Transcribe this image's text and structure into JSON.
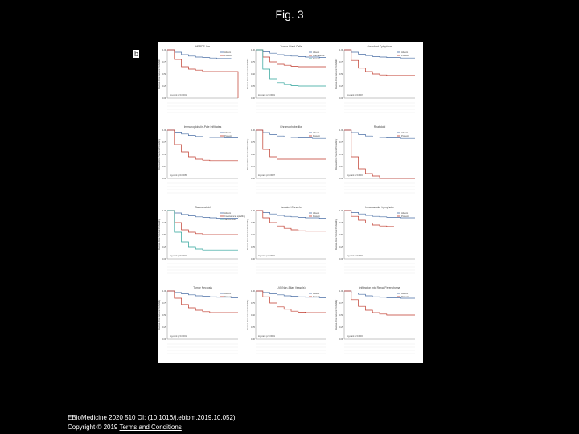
{
  "title": "Fig. 3",
  "panel_letter": "b",
  "footer": {
    "citation": "EBioMedicine 2020 510 OI: (10.1016/j.ebiom.2019.10.052)",
    "copyright": "Copyright © 2019",
    "terms_link": "Terms and Conditions"
  },
  "colors": {
    "absent": "#4a6fa5",
    "present": "#c0392b",
    "third": "#2aa198",
    "grid": "#bbbbbb",
    "text": "#444444"
  },
  "panels": [
    {
      "title": "HERDS-like",
      "legend": [
        "Absent",
        "Present"
      ],
      "pval": "log-rank p<0.0001",
      "series": [
        [
          1,
          0.95,
          0.9,
          0.87,
          0.85,
          0.84,
          0.83,
          0.82,
          0.82,
          0.81,
          0.81
        ],
        [
          1,
          0.8,
          0.65,
          0.6,
          0.58,
          0.55,
          0.55,
          0.55,
          0.55,
          0.55,
          0.0
        ]
      ]
    },
    {
      "title": "Tumor Giant Cells",
      "legend": [
        "Absent",
        "Intermediate",
        "Present"
      ],
      "pval": "log-rank p<0.0001",
      "series": [
        [
          1,
          0.96,
          0.93,
          0.9,
          0.88,
          0.87,
          0.86,
          0.85,
          0.85,
          0.84,
          0.84
        ],
        [
          1,
          0.85,
          0.75,
          0.7,
          0.68,
          0.66,
          0.65,
          0.65,
          0.65,
          0.65,
          0.65
        ],
        [
          1,
          0.6,
          0.4,
          0.32,
          0.28,
          0.26,
          0.25,
          0.25,
          0.25,
          0.25,
          0.25
        ]
      ]
    },
    {
      "title": "Abundant Cytoplasm",
      "legend": [
        "Absent",
        "Present"
      ],
      "pval": "log-rank p=0.0007",
      "series": [
        [
          1,
          0.95,
          0.91,
          0.88,
          0.86,
          0.85,
          0.84,
          0.84,
          0.83,
          0.83,
          0.83
        ],
        [
          1,
          0.78,
          0.62,
          0.55,
          0.5,
          0.48,
          0.47,
          0.47,
          0.47,
          0.47,
          0.47
        ]
      ]
    },
    {
      "title": "Immunoglobulin-Pale Infiltrates",
      "legend": [
        "Absent",
        "Present"
      ],
      "pval": "log-rank p=0.0005",
      "series": [
        [
          1,
          0.96,
          0.92,
          0.89,
          0.87,
          0.86,
          0.85,
          0.85,
          0.84,
          0.84,
          0.84
        ],
        [
          1,
          0.7,
          0.55,
          0.45,
          0.4,
          0.38,
          0.37,
          0.37,
          0.37,
          0.37,
          0.37
        ]
      ]
    },
    {
      "title": "Chromophobe-like",
      "legend": [
        "Absent",
        "Present"
      ],
      "pval": "log-rank p=0.0007",
      "series": [
        [
          1,
          0.95,
          0.91,
          0.88,
          0.86,
          0.85,
          0.84,
          0.84,
          0.83,
          0.83,
          0.83
        ],
        [
          1,
          0.6,
          0.45,
          0.4,
          0.4,
          0.4,
          0.4,
          0.4,
          0.4,
          0.4,
          0.4
        ]
      ]
    },
    {
      "title": "Rhabdoid",
      "legend": [
        "Absent",
        "Present"
      ],
      "pval": "log-rank p<0.0001",
      "series": [
        [
          1,
          0.95,
          0.91,
          0.88,
          0.86,
          0.85,
          0.84,
          0.84,
          0.83,
          0.83,
          0.83
        ],
        [
          1,
          0.45,
          0.2,
          0.1,
          0.05,
          0.0,
          0.0,
          0.0,
          0.0,
          0.0,
          0.0
        ]
      ]
    },
    {
      "title": "Sarcomatoid",
      "legend": [
        "Absent",
        "Coexistence: spindling",
        "Sarcomatoid"
      ],
      "pval": "log-rank p<0.0001",
      "series": [
        [
          1,
          0.95,
          0.92,
          0.89,
          0.87,
          0.86,
          0.85,
          0.84,
          0.84,
          0.84,
          0.84
        ],
        [
          1,
          0.75,
          0.6,
          0.55,
          0.52,
          0.5,
          0.5,
          0.5,
          0.5,
          0.5,
          0.5
        ],
        [
          1,
          0.55,
          0.35,
          0.25,
          0.2,
          0.18,
          0.18,
          0.18,
          0.18,
          0.18,
          0.18
        ]
      ]
    },
    {
      "title": "Isolated Cancels",
      "legend": [
        "Absent",
        "Present"
      ],
      "pval": "log-rank p<0.0001",
      "series": [
        [
          1,
          0.96,
          0.93,
          0.9,
          0.88,
          0.87,
          0.86,
          0.85,
          0.85,
          0.84,
          0.84
        ],
        [
          1,
          0.85,
          0.75,
          0.68,
          0.63,
          0.6,
          0.58,
          0.57,
          0.57,
          0.57,
          0.57
        ]
      ]
    },
    {
      "title": "Intravascular Lymphatic",
      "legend": [
        "Absent",
        "Present"
      ],
      "pval": "log-rank p<0.0001",
      "series": [
        [
          1,
          0.96,
          0.93,
          0.9,
          0.88,
          0.87,
          0.86,
          0.86,
          0.85,
          0.85,
          0.85
        ],
        [
          1,
          0.88,
          0.8,
          0.74,
          0.7,
          0.68,
          0.67,
          0.66,
          0.66,
          0.66,
          0.66
        ]
      ]
    },
    {
      "title": "Tumor Necrosis",
      "legend": [
        "Absent",
        "Present"
      ],
      "pval": "log-rank p<0.0001",
      "series": [
        [
          1,
          0.97,
          0.94,
          0.92,
          0.9,
          0.89,
          0.88,
          0.87,
          0.87,
          0.86,
          0.86
        ],
        [
          1,
          0.85,
          0.72,
          0.65,
          0.6,
          0.57,
          0.55,
          0.55,
          0.55,
          0.55,
          0.55
        ]
      ]
    },
    {
      "title": "LVI (Non-Elias Vessels)",
      "legend": [
        "Absent",
        "Present"
      ],
      "pval": "log-rank p<0.0001",
      "series": [
        [
          1,
          0.97,
          0.94,
          0.92,
          0.9,
          0.89,
          0.88,
          0.87,
          0.87,
          0.86,
          0.86
        ],
        [
          1,
          0.88,
          0.75,
          0.67,
          0.62,
          0.58,
          0.56,
          0.55,
          0.55,
          0.55,
          0.55
        ]
      ]
    },
    {
      "title": "Infiltration into Renal Parenchyma",
      "legend": [
        "Absent",
        "Present"
      ],
      "pval": "log-rank p<0.0001",
      "series": [
        [
          1,
          0.96,
          0.93,
          0.9,
          0.88,
          0.87,
          0.86,
          0.86,
          0.85,
          0.85,
          0.85
        ],
        [
          1,
          0.82,
          0.68,
          0.6,
          0.55,
          0.52,
          0.5,
          0.5,
          0.5,
          0.5,
          0.5
        ]
      ]
    }
  ]
}
